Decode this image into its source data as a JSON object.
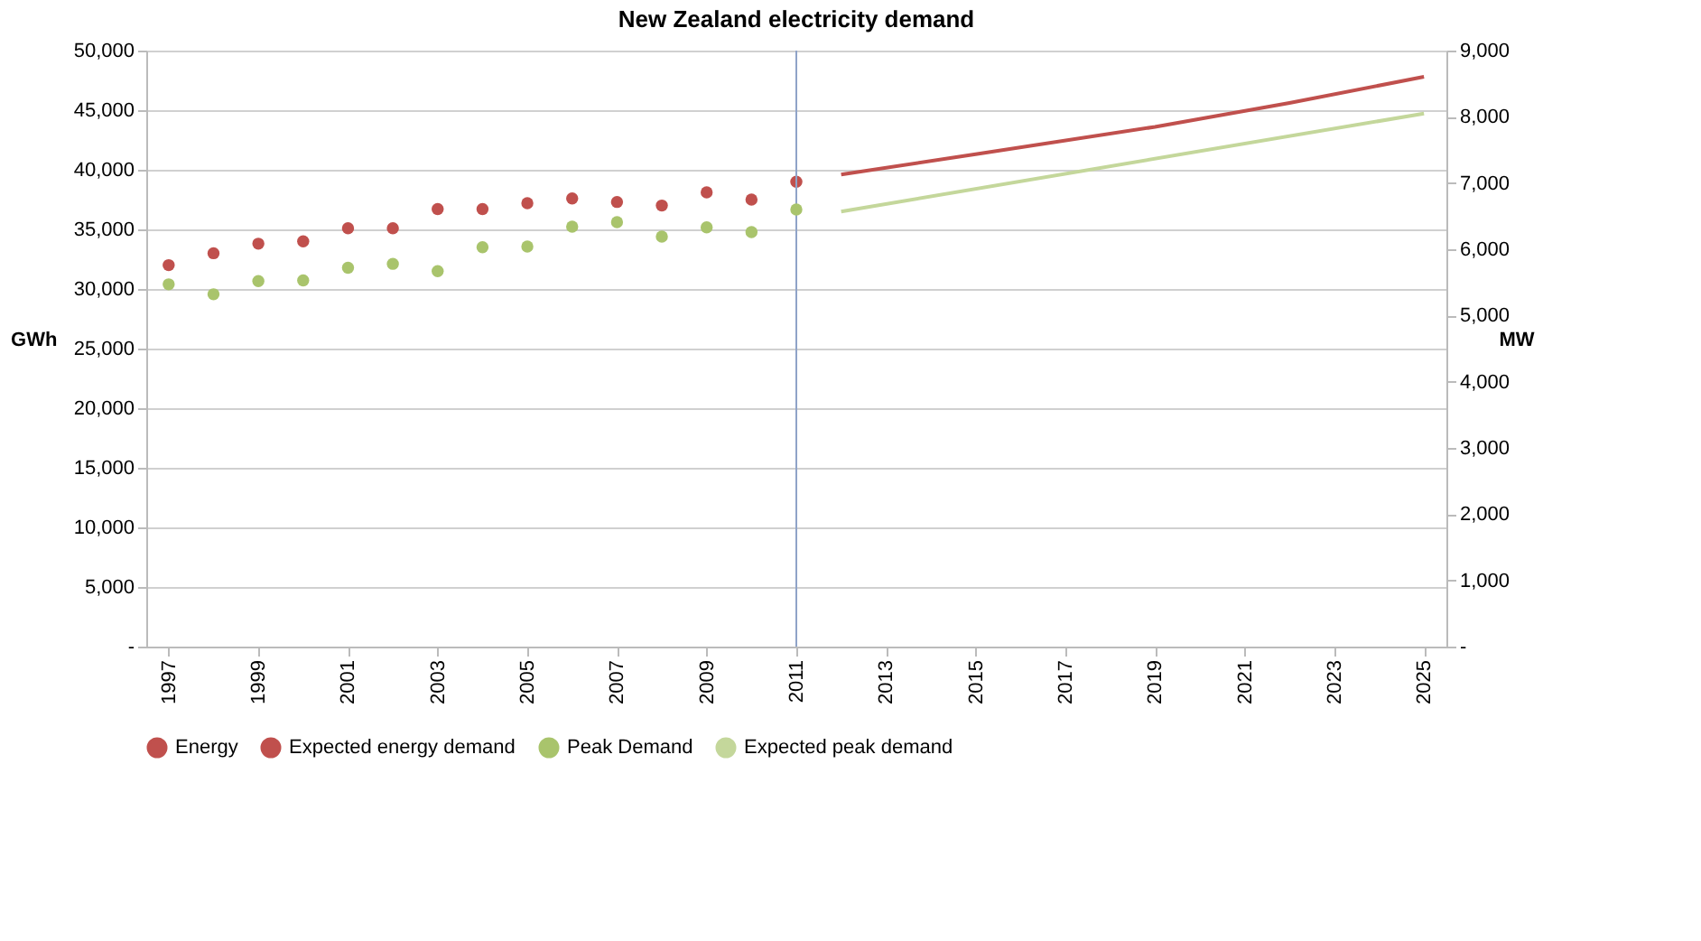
{
  "chart_data": {
    "type": "scatter",
    "title": "New Zealand electricity demand",
    "ylabel": "GWh",
    "y2label": "MW",
    "xlim": [
      1996.5,
      2025.5
    ],
    "xticks": [
      1997,
      1999,
      2001,
      2003,
      2005,
      2007,
      2009,
      2011,
      2013,
      2015,
      2017,
      2019,
      2021,
      2023,
      2025
    ],
    "ylim": [
      0,
      50000
    ],
    "yticks": [
      {
        "value": 0,
        "label": "-"
      },
      {
        "value": 5000,
        "label": "5,000"
      },
      {
        "value": 10000,
        "label": "10,000"
      },
      {
        "value": 15000,
        "label": "15,000"
      },
      {
        "value": 20000,
        "label": "20,000"
      },
      {
        "value": 25000,
        "label": "25,000"
      },
      {
        "value": 30000,
        "label": "30,000"
      },
      {
        "value": 35000,
        "label": "35,000"
      },
      {
        "value": 40000,
        "label": "40,000"
      },
      {
        "value": 45000,
        "label": "45,000"
      },
      {
        "value": 50000,
        "label": "50,000"
      }
    ],
    "y2lim": [
      0,
      9000
    ],
    "y2ticks": [
      {
        "value": 0,
        "label": "-"
      },
      {
        "value": 1000,
        "label": "1,000"
      },
      {
        "value": 2000,
        "label": "2,000"
      },
      {
        "value": 3000,
        "label": "3,000"
      },
      {
        "value": 4000,
        "label": "4,000"
      },
      {
        "value": 5000,
        "label": "5,000"
      },
      {
        "value": 6000,
        "label": "6,000"
      },
      {
        "value": 7000,
        "label": "7,000"
      },
      {
        "value": 8000,
        "label": "8,000"
      },
      {
        "value": 9000,
        "label": "9,000"
      }
    ],
    "grid": "y",
    "legend": "bottom",
    "ref_lines": [
      {
        "axis": "x",
        "value": 2011,
        "color": "#8fa3c8"
      }
    ],
    "series": [
      {
        "name": "Energy",
        "marker": "circle",
        "color": "#c0504d",
        "x": [
          1997,
          1998,
          1999,
          2000,
          2001,
          2002,
          2003,
          2004,
          2005,
          2006,
          2007,
          2008,
          2009,
          2010,
          2011
        ],
        "values": [
          32000,
          33000,
          33800,
          34000,
          35100,
          35100,
          36700,
          36700,
          37200,
          37600,
          37300,
          37000,
          38100,
          37500,
          39000
        ]
      },
      {
        "name": "Expected energy demand",
        "type": "line",
        "color": "#c0504d",
        "x": [
          2012,
          2015,
          2019,
          2022,
          2025
        ],
        "values": [
          39600,
          41300,
          43600,
          45600,
          47800
        ]
      },
      {
        "name": "Peak Demand",
        "marker": "circle",
        "axis": "y2",
        "color": "#a9c46c",
        "x": [
          1997,
          1998,
          1999,
          2000,
          2001,
          2002,
          2003,
          2004,
          2005,
          2006,
          2007,
          2008,
          2009,
          2010,
          2011
        ],
        "values": [
          5470,
          5320,
          5520,
          5530,
          5720,
          5780,
          5670,
          6030,
          6040,
          6340,
          6410,
          6190,
          6330,
          6260,
          6600
        ]
      },
      {
        "name": "Expected peak demand",
        "type": "line",
        "axis": "y2",
        "color": "#c4d79b",
        "x": [
          2012,
          2025
        ],
        "values": [
          6570,
          8050
        ]
      }
    ]
  }
}
